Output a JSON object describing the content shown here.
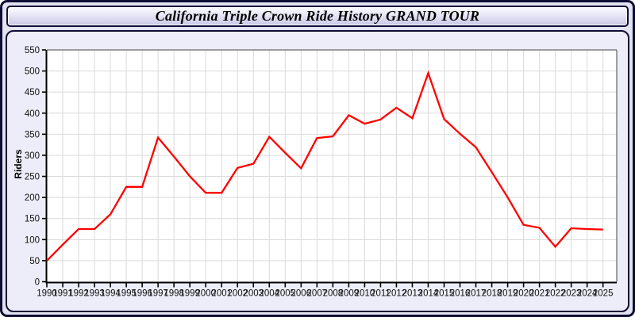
{
  "chart_data": {
    "type": "line",
    "title": "California Triple Crown Ride History GRAND TOUR",
    "ylabel": "Riders",
    "xlabel": "",
    "x": [
      1990,
      1991,
      1992,
      1993,
      1994,
      1995,
      1996,
      1997,
      1998,
      1999,
      2000,
      2001,
      2002,
      2003,
      2004,
      2005,
      2006,
      2007,
      2008,
      2009,
      2010,
      2011,
      2012,
      2013,
      2014,
      2015,
      2016,
      2017,
      2018,
      2019,
      2020,
      2021,
      2022,
      2023,
      2024,
      2025
    ],
    "values": [
      50,
      88,
      125,
      125,
      160,
      225,
      225,
      342,
      297,
      250,
      211,
      211,
      270,
      280,
      344,
      306,
      269,
      341,
      345,
      395,
      375,
      385,
      413,
      388,
      495,
      386,
      351,
      319,
      260,
      200,
      135,
      128,
      83,
      127,
      125,
      124
    ],
    "ylim": [
      0,
      550
    ],
    "ytick_step": 50,
    "grid": true,
    "legend": "none",
    "line_color": "#ff0000"
  },
  "colors": {
    "page_background": "#e2e2f0",
    "panel_background": "#ededf9",
    "plot_background": "#ffffff",
    "border": "#0c0c34",
    "grid": "#d9d9d9",
    "axis": "#000000",
    "frame": "#444444",
    "tick_text": "#111111",
    "line": "#ff0000"
  }
}
